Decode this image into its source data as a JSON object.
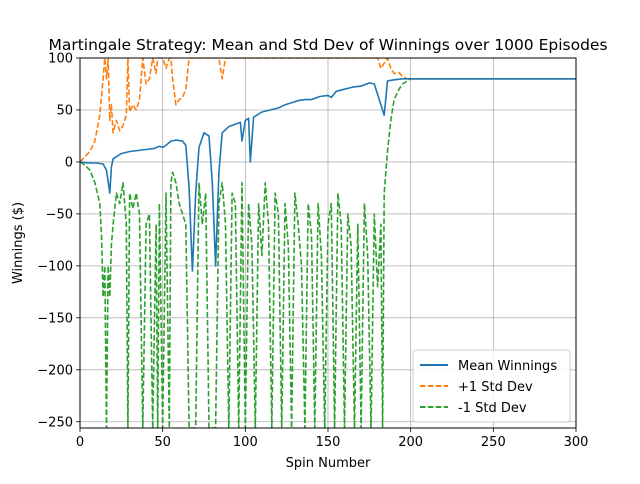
{
  "chart_data": {
    "type": "line",
    "title": "Martingale Strategy: Mean and Std Dev of Winnings over 1000 Episodes",
    "xlabel": "Spin Number",
    "ylabel": "Winnings ($)",
    "xlim": [
      0,
      300
    ],
    "ylim": [
      -256,
      100
    ],
    "xticks": [
      0,
      50,
      100,
      150,
      200,
      250,
      300
    ],
    "yticks": [
      -250,
      -200,
      -150,
      -100,
      -50,
      0,
      50,
      100
    ],
    "ytick_labels": [
      "−250",
      "−200",
      "−150",
      "−100",
      "−50",
      "0",
      "50",
      "100"
    ],
    "grid": true,
    "legend_position": "lower-right",
    "series": [
      {
        "name": "Mean Winnings",
        "color": "#1f77b4",
        "dash": "solid",
        "points": [
          [
            0,
            0
          ],
          [
            5,
            -1
          ],
          [
            10,
            -1
          ],
          [
            14,
            -2
          ],
          [
            16,
            -8
          ],
          [
            18,
            -30
          ],
          [
            19,
            -5
          ],
          [
            20,
            3
          ],
          [
            25,
            8
          ],
          [
            30,
            10
          ],
          [
            35,
            11
          ],
          [
            40,
            12
          ],
          [
            45,
            13
          ],
          [
            48,
            15
          ],
          [
            50,
            14
          ],
          [
            52,
            16
          ],
          [
            55,
            20
          ],
          [
            58,
            21
          ],
          [
            62,
            20
          ],
          [
            64,
            16
          ],
          [
            66,
            -25
          ],
          [
            68,
            -105
          ],
          [
            70,
            -30
          ],
          [
            72,
            14
          ],
          [
            75,
            28
          ],
          [
            78,
            25
          ],
          [
            80,
            -20
          ],
          [
            82,
            -100
          ],
          [
            84,
            -10
          ],
          [
            86,
            28
          ],
          [
            90,
            34
          ],
          [
            95,
            37
          ],
          [
            97,
            38
          ],
          [
            98,
            20
          ],
          [
            100,
            40
          ],
          [
            102,
            42
          ],
          [
            103,
            0
          ],
          [
            105,
            43
          ],
          [
            110,
            48
          ],
          [
            115,
            50
          ],
          [
            120,
            52
          ],
          [
            124,
            55
          ],
          [
            128,
            57
          ],
          [
            132,
            59
          ],
          [
            136,
            60
          ],
          [
            140,
            60
          ],
          [
            145,
            63
          ],
          [
            150,
            64
          ],
          [
            152,
            62
          ],
          [
            155,
            68
          ],
          [
            160,
            70
          ],
          [
            165,
            72
          ],
          [
            170,
            73
          ],
          [
            175,
            76
          ],
          [
            178,
            75
          ],
          [
            180,
            65
          ],
          [
            182,
            55
          ],
          [
            184,
            45
          ],
          [
            186,
            78
          ],
          [
            190,
            79
          ],
          [
            195,
            80
          ],
          [
            200,
            80
          ],
          [
            250,
            80
          ],
          [
            300,
            80
          ]
        ]
      },
      {
        "name": "+1 Std Dev",
        "color": "#ff7f0e",
        "dash": "dashed",
        "points": [
          [
            0,
            0
          ],
          [
            3,
            5
          ],
          [
            6,
            10
          ],
          [
            9,
            20
          ],
          [
            12,
            45
          ],
          [
            14,
            80
          ],
          [
            15,
            100
          ],
          [
            16,
            80
          ],
          [
            17,
            100
          ],
          [
            18,
            40
          ],
          [
            19,
            55
          ],
          [
            20,
            28
          ],
          [
            22,
            40
          ],
          [
            24,
            30
          ],
          [
            26,
            35
          ],
          [
            28,
            45
          ],
          [
            29,
            100
          ],
          [
            30,
            48
          ],
          [
            32,
            55
          ],
          [
            34,
            50
          ],
          [
            36,
            60
          ],
          [
            38,
            100
          ],
          [
            40,
            75
          ],
          [
            42,
            80
          ],
          [
            44,
            100
          ],
          [
            46,
            85
          ],
          [
            47,
            100
          ],
          [
            50,
            100
          ],
          [
            52,
            90
          ],
          [
            54,
            100
          ],
          [
            55,
            100
          ],
          [
            56,
            80
          ],
          [
            58,
            55
          ],
          [
            60,
            60
          ],
          [
            62,
            62
          ],
          [
            64,
            70
          ],
          [
            66,
            100
          ],
          [
            70,
            100
          ],
          [
            72,
            100
          ],
          [
            75,
            100
          ],
          [
            78,
            100
          ],
          [
            80,
            100
          ],
          [
            84,
            100
          ],
          [
            86,
            80
          ],
          [
            88,
            100
          ],
          [
            90,
            100
          ],
          [
            92,
            100
          ],
          [
            95,
            100
          ],
          [
            100,
            100
          ],
          [
            105,
            100
          ],
          [
            110,
            100
          ],
          [
            115,
            100
          ],
          [
            120,
            100
          ],
          [
            125,
            100
          ],
          [
            130,
            100
          ],
          [
            135,
            100
          ],
          [
            140,
            100
          ],
          [
            145,
            100
          ],
          [
            150,
            100
          ],
          [
            155,
            100
          ],
          [
            160,
            100
          ],
          [
            165,
            100
          ],
          [
            170,
            100
          ],
          [
            175,
            100
          ],
          [
            180,
            100
          ],
          [
            182,
            90
          ],
          [
            184,
            95
          ],
          [
            186,
            100
          ],
          [
            188,
            90
          ],
          [
            190,
            85
          ],
          [
            193,
            86
          ],
          [
            195,
            82
          ],
          [
            198,
            80
          ],
          [
            200,
            80
          ],
          [
            250,
            80
          ],
          [
            300,
            80
          ]
        ]
      },
      {
        "name": "-1 Std Dev",
        "color": "#2ca02c",
        "dash": "dashed",
        "points": [
          [
            0,
            0
          ],
          [
            3,
            -3
          ],
          [
            6,
            -8
          ],
          [
            9,
            -20
          ],
          [
            12,
            -40
          ],
          [
            13,
            -70
          ],
          [
            14,
            -130
          ],
          [
            15,
            -100
          ],
          [
            16,
            -256
          ],
          [
            17,
            -100
          ],
          [
            18,
            -130
          ],
          [
            19,
            -80
          ],
          [
            20,
            -60
          ],
          [
            22,
            -30
          ],
          [
            24,
            -40
          ],
          [
            26,
            -20
          ],
          [
            28,
            -60
          ],
          [
            29,
            -256
          ],
          [
            30,
            -30
          ],
          [
            32,
            -45
          ],
          [
            34,
            -30
          ],
          [
            36,
            -50
          ],
          [
            38,
            -256
          ],
          [
            40,
            -60
          ],
          [
            42,
            -50
          ],
          [
            44,
            -256
          ],
          [
            46,
            -60
          ],
          [
            47,
            -256
          ],
          [
            48,
            -40
          ],
          [
            50,
            -256
          ],
          [
            52,
            -30
          ],
          [
            54,
            -256
          ],
          [
            55,
            -20
          ],
          [
            56,
            -10
          ],
          [
            58,
            -20
          ],
          [
            60,
            -40
          ],
          [
            62,
            -50
          ],
          [
            64,
            -60
          ],
          [
            66,
            -256
          ],
          [
            68,
            -256
          ],
          [
            70,
            -256
          ],
          [
            72,
            -20
          ],
          [
            74,
            -60
          ],
          [
            76,
            -30
          ],
          [
            78,
            -256
          ],
          [
            80,
            -256
          ],
          [
            82,
            -256
          ],
          [
            84,
            -40
          ],
          [
            86,
            -20
          ],
          [
            88,
            -60
          ],
          [
            90,
            -256
          ],
          [
            92,
            -30
          ],
          [
            94,
            -40
          ],
          [
            96,
            -256
          ],
          [
            98,
            -20
          ],
          [
            100,
            -256
          ],
          [
            102,
            -40
          ],
          [
            104,
            -80
          ],
          [
            106,
            -256
          ],
          [
            108,
            -40
          ],
          [
            110,
            -90
          ],
          [
            112,
            -20
          ],
          [
            114,
            -60
          ],
          [
            116,
            -256
          ],
          [
            118,
            -30
          ],
          [
            120,
            -50
          ],
          [
            122,
            -256
          ],
          [
            124,
            -40
          ],
          [
            126,
            -80
          ],
          [
            128,
            -256
          ],
          [
            130,
            -30
          ],
          [
            132,
            -60
          ],
          [
            134,
            -100
          ],
          [
            136,
            -256
          ],
          [
            138,
            -40
          ],
          [
            140,
            -70
          ],
          [
            142,
            -256
          ],
          [
            144,
            -40
          ],
          [
            146,
            -90
          ],
          [
            148,
            -256
          ],
          [
            150,
            -60
          ],
          [
            152,
            -40
          ],
          [
            154,
            -256
          ],
          [
            156,
            -30
          ],
          [
            158,
            -60
          ],
          [
            160,
            -256
          ],
          [
            162,
            -50
          ],
          [
            164,
            -80
          ],
          [
            166,
            -256
          ],
          [
            168,
            -60
          ],
          [
            170,
            -256
          ],
          [
            172,
            -40
          ],
          [
            174,
            -90
          ],
          [
            176,
            -256
          ],
          [
            178,
            -50
          ],
          [
            180,
            -120
          ],
          [
            182,
            -60
          ],
          [
            183,
            -256
          ],
          [
            184,
            -30
          ],
          [
            186,
            10
          ],
          [
            188,
            40
          ],
          [
            190,
            60
          ],
          [
            193,
            70
          ],
          [
            195,
            75
          ],
          [
            198,
            78
          ],
          [
            200,
            80
          ],
          [
            250,
            80
          ],
          [
            300,
            80
          ]
        ]
      }
    ]
  }
}
